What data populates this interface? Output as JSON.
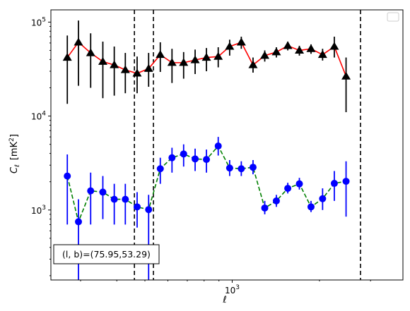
{
  "chart_data": {
    "type": "scatter",
    "title": "",
    "xlabel": "ℓ",
    "ylabel_main": "C",
    "ylabel_sub": "ℓ",
    "ylabel_unit": "[mK",
    "ylabel_unit_sup": "2",
    "ylabel_unit_end": "]",
    "x_scale": "log",
    "y_scale": "log",
    "xlim": [
      237,
      3880
    ],
    "ylim": [
      180,
      135000
    ],
    "grid": false,
    "legend": "top-right",
    "x_ticks": [
      {
        "value": 1000,
        "base": "10",
        "exp": "3"
      }
    ],
    "y_ticks": [
      {
        "value": 1000,
        "base": "10",
        "exp": "3"
      },
      {
        "value": 10000,
        "base": "10",
        "exp": "4"
      },
      {
        "value": 100000,
        "base": "10",
        "exp": "5"
      }
    ],
    "vlines": [
      460,
      535,
      2770
    ],
    "annotation": "(l, b)=(75.95,53.29)",
    "series": [
      {
        "style": "red-line-black-triangles",
        "line_color": "#ff0000",
        "marker_color": "#000000",
        "errorbar_color": "#000000",
        "points": [
          {
            "x": 270,
            "y": 42000,
            "lo": 13500,
            "hi": 72000
          },
          {
            "x": 295,
            "y": 61000,
            "lo": 21000,
            "hi": 104000
          },
          {
            "x": 325,
            "y": 47000,
            "lo": 20000,
            "hi": 76000
          },
          {
            "x": 358,
            "y": 38000,
            "lo": 15500,
            "hi": 62000
          },
          {
            "x": 392,
            "y": 35000,
            "lo": 16500,
            "hi": 55000
          },
          {
            "x": 428,
            "y": 31000,
            "lo": 17500,
            "hi": 47000
          },
          {
            "x": 470,
            "y": 28500,
            "lo": 17500,
            "hi": 43000
          },
          {
            "x": 515,
            "y": 32000,
            "lo": 20500,
            "hi": 47000
          },
          {
            "x": 565,
            "y": 45000,
            "lo": 29500,
            "hi": 61000
          },
          {
            "x": 620,
            "y": 37000,
            "lo": 22500,
            "hi": 52000
          },
          {
            "x": 680,
            "y": 37000,
            "lo": 25000,
            "hi": 48000
          },
          {
            "x": 745,
            "y": 39500,
            "lo": 28000,
            "hi": 51000
          },
          {
            "x": 815,
            "y": 42000,
            "lo": 30000,
            "hi": 53000
          },
          {
            "x": 895,
            "y": 43000,
            "lo": 33000,
            "hi": 54000
          },
          {
            "x": 980,
            "y": 55000,
            "lo": 44000,
            "hi": 65000
          },
          {
            "x": 1075,
            "y": 61000,
            "lo": 52000,
            "hi": 70000
          },
          {
            "x": 1180,
            "y": 35000,
            "lo": 29000,
            "hi": 42000
          },
          {
            "x": 1295,
            "y": 44000,
            "lo": 38000,
            "hi": 50000
          },
          {
            "x": 1420,
            "y": 48000,
            "lo": 42000,
            "hi": 54000
          },
          {
            "x": 1555,
            "y": 56000,
            "lo": 50000,
            "hi": 62000
          },
          {
            "x": 1705,
            "y": 50000,
            "lo": 44000,
            "hi": 56000
          },
          {
            "x": 1870,
            "y": 52000,
            "lo": 46000,
            "hi": 58000
          },
          {
            "x": 2050,
            "y": 45000,
            "lo": 39000,
            "hi": 52000
          },
          {
            "x": 2250,
            "y": 55000,
            "lo": 42000,
            "hi": 70000
          },
          {
            "x": 2470,
            "y": 26500,
            "lo": 11000,
            "hi": 42000
          }
        ]
      },
      {
        "style": "green-dashed-blue-circles",
        "line_color": "#008000",
        "marker_color": "#0000ff",
        "errorbar_color": "#0000ff",
        "points": [
          {
            "x": 270,
            "y": 2300,
            "lo": 700,
            "hi": 3900
          },
          {
            "x": 295,
            "y": 750,
            "lo": 180,
            "hi": 1300
          },
          {
            "x": 325,
            "y": 1600,
            "lo": 700,
            "hi": 2500
          },
          {
            "x": 358,
            "y": 1550,
            "lo": 800,
            "hi": 2300
          },
          {
            "x": 392,
            "y": 1300,
            "lo": 700,
            "hi": 1900
          },
          {
            "x": 428,
            "y": 1300,
            "lo": 700,
            "hi": 1900
          },
          {
            "x": 470,
            "y": 1080,
            "lo": 650,
            "hi": 1550
          },
          {
            "x": 515,
            "y": 1010,
            "lo": 180,
            "hi": 1450
          },
          {
            "x": 565,
            "y": 2750,
            "lo": 1900,
            "hi": 3600
          },
          {
            "x": 620,
            "y": 3600,
            "lo": 2500,
            "hi": 4600
          },
          {
            "x": 680,
            "y": 3950,
            "lo": 2900,
            "hi": 5000
          },
          {
            "x": 745,
            "y": 3500,
            "lo": 2600,
            "hi": 4500
          },
          {
            "x": 815,
            "y": 3450,
            "lo": 2500,
            "hi": 4400
          },
          {
            "x": 895,
            "y": 4800,
            "lo": 3800,
            "hi": 6000
          },
          {
            "x": 980,
            "y": 2800,
            "lo": 2300,
            "hi": 3400
          },
          {
            "x": 1075,
            "y": 2750,
            "lo": 2300,
            "hi": 3300
          },
          {
            "x": 1180,
            "y": 2850,
            "lo": 2400,
            "hi": 3400
          },
          {
            "x": 1295,
            "y": 1050,
            "lo": 900,
            "hi": 1250
          },
          {
            "x": 1420,
            "y": 1250,
            "lo": 1080,
            "hi": 1450
          },
          {
            "x": 1555,
            "y": 1700,
            "lo": 1500,
            "hi": 1950
          },
          {
            "x": 1705,
            "y": 1900,
            "lo": 1650,
            "hi": 2200
          },
          {
            "x": 1870,
            "y": 1080,
            "lo": 950,
            "hi": 1250
          },
          {
            "x": 2050,
            "y": 1320,
            "lo": 1000,
            "hi": 1700
          },
          {
            "x": 2250,
            "y": 1920,
            "lo": 1250,
            "hi": 2600
          },
          {
            "x": 2470,
            "y": 2020,
            "lo": 850,
            "hi": 3300
          }
        ]
      }
    ]
  }
}
